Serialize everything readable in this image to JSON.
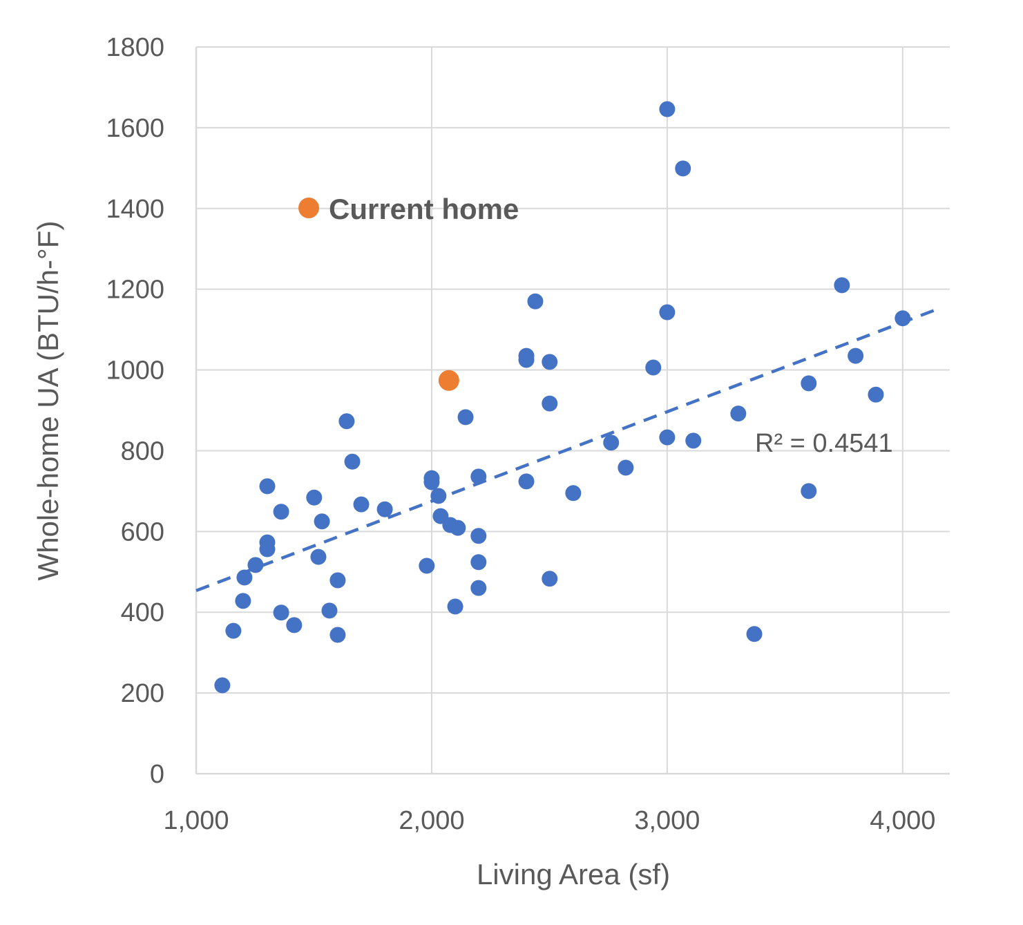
{
  "chart_data": {
    "type": "scatter",
    "title": "",
    "xlabel": "Living Area (sf)",
    "ylabel": "Whole-home UA (BTU/h-°F)",
    "xlim": [
      1000,
      4200
    ],
    "ylim": [
      0,
      1800
    ],
    "xticks": [
      1000,
      2000,
      3000,
      4000
    ],
    "xtick_labels": [
      "1,000",
      "2,000",
      "3,000",
      "4,000"
    ],
    "yticks": [
      0,
      200,
      400,
      600,
      800,
      1000,
      1200,
      1400,
      1600,
      1800
    ],
    "ytick_labels": [
      "0",
      "200",
      "400",
      "600",
      "800",
      "1000",
      "1200",
      "1400",
      "1600",
      "1800"
    ],
    "grid": true,
    "colors": {
      "homes": "#4472C4",
      "current": "#ED7D31",
      "trend": "#4472C4",
      "grid": "#D9D9D9",
      "text": "#595959"
    },
    "series": [
      {
        "points": [
          [
            3000,
            1646
          ],
          [
            3067,
            1499
          ],
          [
            3742,
            1210
          ],
          [
            2440,
            1170
          ],
          [
            3000,
            1143
          ],
          [
            4000,
            1128
          ],
          [
            2402,
            1035
          ],
          [
            2402,
            1025
          ],
          [
            2501,
            1020
          ],
          [
            2941,
            1006
          ],
          [
            3800,
            1035
          ],
          [
            3601,
            967
          ],
          [
            3886,
            939
          ],
          [
            2501,
            917
          ],
          [
            2144,
            883
          ],
          [
            1639,
            873
          ],
          [
            3302,
            892
          ],
          [
            2762,
            820
          ],
          [
            3000,
            833
          ],
          [
            3111,
            825
          ],
          [
            1663,
            773
          ],
          [
            2824,
            758
          ],
          [
            3601,
            700
          ],
          [
            2601,
            695
          ],
          [
            2402,
            724
          ],
          [
            2199,
            736
          ],
          [
            2000,
            732
          ],
          [
            2000,
            722
          ],
          [
            2029,
            688
          ],
          [
            1302,
            712
          ],
          [
            1501,
            684
          ],
          [
            1701,
            667
          ],
          [
            1801,
            655
          ],
          [
            1361,
            649
          ],
          [
            1534,
            625
          ],
          [
            2038,
            638
          ],
          [
            2079,
            616
          ],
          [
            2111,
            609
          ],
          [
            2199,
            589
          ],
          [
            1302,
            573
          ],
          [
            1302,
            556
          ],
          [
            1252,
            517
          ],
          [
            1519,
            537
          ],
          [
            1979,
            515
          ],
          [
            2199,
            524
          ],
          [
            1205,
            486
          ],
          [
            1601,
            479
          ],
          [
            2199,
            460
          ],
          [
            2501,
            483
          ],
          [
            1199,
            428
          ],
          [
            1361,
            399
          ],
          [
            1566,
            404
          ],
          [
            2100,
            414
          ],
          [
            1416,
            368
          ],
          [
            1158,
            354
          ],
          [
            1601,
            344
          ],
          [
            3370,
            346
          ],
          [
            1111,
            219
          ]
        ]
      },
      {
        "name": "Current home",
        "points": [
          [
            2073,
            974
          ]
        ]
      }
    ],
    "trendline": {
      "type": "linear",
      "slope": 0.2215,
      "intercept": 232,
      "r2_label": "R² = 0.4541"
    },
    "annotations": [
      "Current home"
    ]
  }
}
